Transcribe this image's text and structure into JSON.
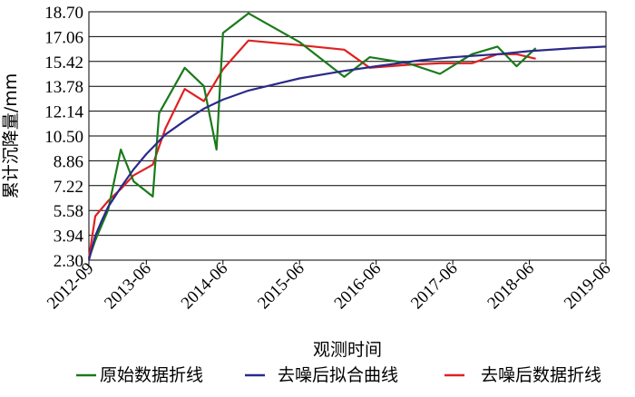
{
  "chart_data": {
    "type": "line",
    "xlabel": "观测时间",
    "ylabel": "累计沉降量/mm",
    "x_ticks": [
      "2012-09",
      "2013-06",
      "2014-06",
      "2015-06",
      "2016-06",
      "2017-06",
      "2018-06",
      "2019-06"
    ],
    "y_ticks": [
      "2.30",
      "3.94",
      "5.58",
      "7.22",
      "8.86",
      "10.50",
      "12.14",
      "13.78",
      "15.42",
      "17.06",
      "18.70"
    ],
    "xlim": [
      "2012-09",
      "2019-06"
    ],
    "ylim": [
      2.3,
      18.7
    ],
    "grid": "horizontal",
    "legend_position": "bottom",
    "series": [
      {
        "name": "原始数据折线",
        "color": "#1a7a1a",
        "x": [
          "2012-09",
          "2012-10",
          "2012-12",
          "2013-02",
          "2013-04",
          "2013-07",
          "2013-08",
          "2013-12",
          "2014-03",
          "2014-05",
          "2014-06",
          "2014-10",
          "2015-06",
          "2016-01",
          "2016-05",
          "2016-11",
          "2017-04",
          "2017-09",
          "2018-01",
          "2018-04",
          "2018-07"
        ],
        "y": [
          2.4,
          3.6,
          5.6,
          9.6,
          7.5,
          6.5,
          12.0,
          15.0,
          13.8,
          9.6,
          17.3,
          18.6,
          16.7,
          14.4,
          15.7,
          15.3,
          14.6,
          15.9,
          16.4,
          15.1,
          16.3
        ]
      },
      {
        "name": "去噪后拟合曲线",
        "color": "#2a2a8a",
        "x": [
          "2012-09",
          "2012-10",
          "2012-11",
          "2012-12",
          "2013-02",
          "2013-04",
          "2013-06",
          "2013-09",
          "2013-12",
          "2014-03",
          "2014-06",
          "2014-10",
          "2015-02",
          "2015-06",
          "2016-01",
          "2016-06",
          "2017-01",
          "2017-06",
          "2018-01",
          "2018-06",
          "2019-01",
          "2019-06"
        ],
        "y": [
          2.3,
          3.9,
          4.9,
          5.8,
          7.1,
          8.3,
          9.3,
          10.6,
          11.5,
          12.3,
          12.9,
          13.5,
          13.9,
          14.3,
          14.8,
          15.1,
          15.5,
          15.7,
          15.9,
          16.1,
          16.3,
          16.4
        ]
      },
      {
        "name": "去噪后数据折线",
        "color": "#e02020",
        "x": [
          "2012-09",
          "2012-10",
          "2012-12",
          "2013-02",
          "2013-04",
          "2013-07",
          "2013-09",
          "2013-12",
          "2014-03",
          "2014-06",
          "2014-10",
          "2015-06",
          "2016-01",
          "2016-05",
          "2016-11",
          "2017-04",
          "2017-09",
          "2018-01",
          "2018-04",
          "2018-07"
        ],
        "y": [
          2.4,
          5.2,
          6.2,
          7.0,
          7.9,
          8.6,
          11.0,
          13.6,
          12.8,
          14.9,
          16.8,
          16.5,
          16.2,
          15.0,
          15.2,
          15.3,
          15.3,
          15.9,
          15.9,
          15.6
        ]
      }
    ]
  }
}
